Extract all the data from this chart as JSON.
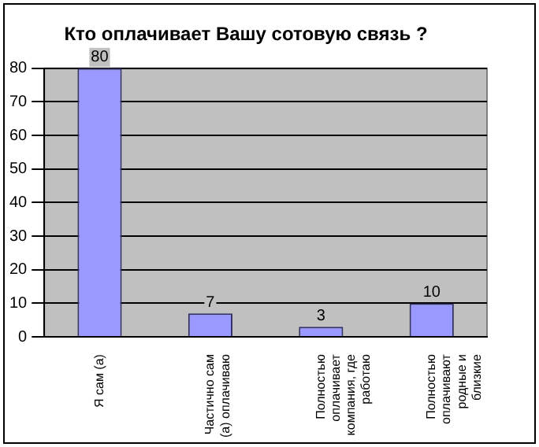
{
  "chart_data": {
    "type": "bar",
    "title": "Кто оплачивает Вашу сотовую связь ?",
    "categories": [
      "Я сам (а)",
      "Частично сам (а) оплачиваю",
      "Полностью оплачивает компания, где работаю",
      "Полностью оплачивают родные и близкие"
    ],
    "values": [
      80,
      7,
      3,
      10
    ],
    "color": "#9999ff",
    "data_labels": true,
    "ylim": [
      0,
      80
    ],
    "yticks": [
      0,
      10,
      20,
      30,
      40,
      50,
      60,
      70,
      80
    ],
    "grid": "y",
    "legend": false
  }
}
